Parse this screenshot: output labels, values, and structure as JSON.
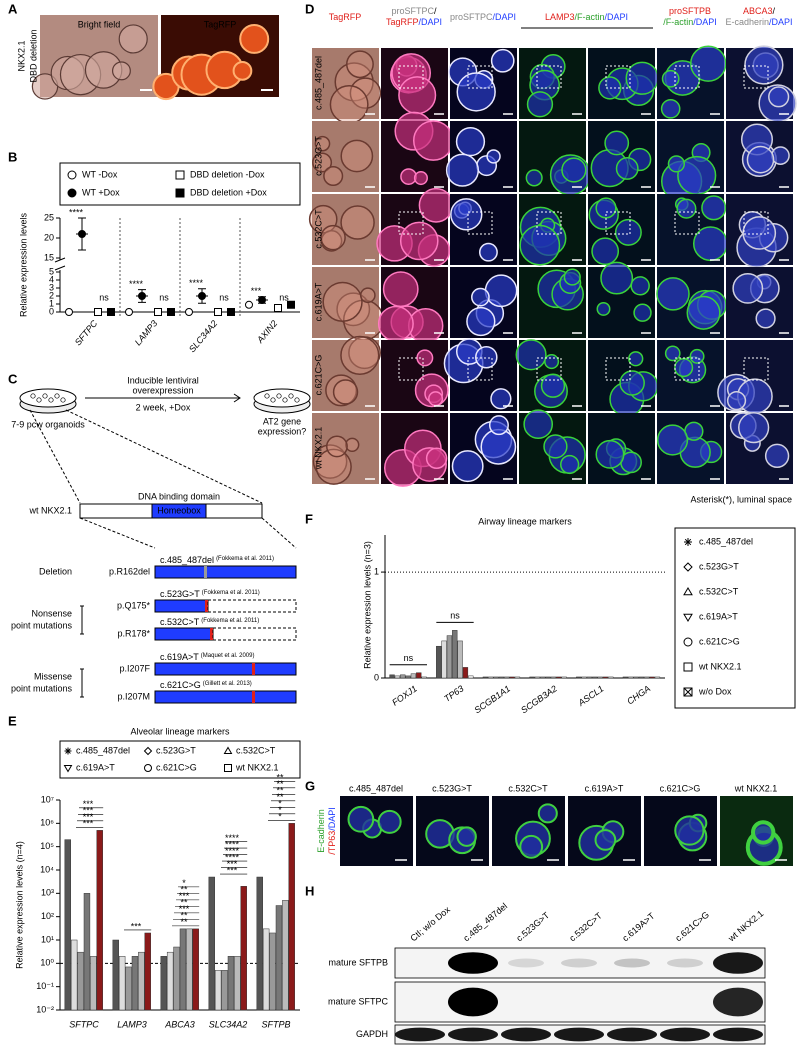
{
  "panel_letters": [
    "A",
    "B",
    "C",
    "D",
    "E",
    "F",
    "G",
    "H"
  ],
  "panel_a": {
    "row_label": [
      "NKX2.1",
      "DBD deletion"
    ],
    "image_labels": [
      "Bright field",
      "TagRFP"
    ]
  },
  "panel_c": {
    "workflow": {
      "steps": [
        "Inducible lentiviral",
        "overexpression"
      ],
      "condition": "2 week, +Dox",
      "source": "7-9 pcw organoids",
      "readout": [
        "AT2 gene",
        "expression?"
      ]
    },
    "construct": {
      "name": "wt NKX2.1",
      "domain": "DNA binding domain",
      "box": "Homeobox"
    },
    "groups": [
      {
        "label": [
          "Deletion"
        ],
        "mutations": [
          {
            "protein": "p.R162del",
            "cdna": "c.485_487del",
            "ref": "(Fokkema et al. 2011)"
          }
        ]
      },
      {
        "label": [
          "Nonsense",
          "point mutations"
        ],
        "mutations": [
          {
            "protein": "p.Q175*",
            "cdna": "c.523G>T",
            "ref": "(Fokkema et al. 2011)"
          },
          {
            "protein": "p.R178*",
            "cdna": "c.532C>T",
            "ref": "(Fokkema et al. 2011)"
          }
        ]
      },
      {
        "label": [
          "Missense",
          "point mutations"
        ],
        "mutations": [
          {
            "protein": "p.I207F",
            "cdna": "c.619A>T",
            "ref": "(Maquet et al. 2009)"
          },
          {
            "protein": "p.I207M",
            "cdna": "c.621C>G",
            "ref": "(Gillett et al. 2013)"
          }
        ]
      }
    ]
  },
  "panel_d": {
    "headers": [
      [
        [
          {
            "text": "TagRFP",
            "color": "#e0201b"
          }
        ]
      ],
      [
        [
          {
            "text": "proSFTPC",
            "color": "#888888"
          },
          {
            "text": "/",
            "color": "#000000"
          }
        ],
        [
          {
            "text": "TagRFP",
            "color": "#e0201b"
          },
          {
            "text": "/DAPI",
            "color": "#1f3cff"
          }
        ]
      ],
      [
        [
          {
            "text": "proSFTPC",
            "color": "#888888"
          },
          {
            "text": "/DAPI",
            "color": "#1f3cff"
          }
        ]
      ],
      [
        [
          {
            "text": "LAMP3",
            "color": "#e0201b"
          },
          {
            "text": "/F-actin",
            "color": "#2ca02c"
          },
          {
            "text": "/DAPI",
            "color": "#1f3cff"
          }
        ]
      ],
      [
        [
          {
            "text": "proSFTPB",
            "color": "#e0201b"
          }
        ],
        [
          {
            "text": "/F-actin",
            "color": "#2ca02c"
          },
          {
            "text": "/DAPI",
            "color": "#1f3cff"
          }
        ]
      ],
      [
        [
          {
            "text": "ABCA3",
            "color": "#e0201b"
          },
          {
            "text": "/",
            "color": "#000000"
          }
        ],
        [
          {
            "text": "E-cadherin",
            "color": "#888888"
          },
          {
            "text": "/DAPI",
            "color": "#1f3cff"
          }
        ]
      ]
    ],
    "row_labels": [
      "c.485_487del",
      "c.523G>T",
      "c.532C>T",
      "c.619A>T",
      "c.621C>G",
      "wt NKX2.1"
    ],
    "footnote": "Asterisk(*), luminal space"
  },
  "panel_g": {
    "side_label": [
      [
        {
          "text": "E-cadherin",
          "color": "#2ca02c"
        }
      ],
      [
        {
          "text": "/TP63",
          "color": "#e0201b"
        },
        {
          "text": "/DAPI",
          "color": "#1f3cff"
        }
      ]
    ],
    "image_labels": [
      "c.485_487del",
      "c.523G>T",
      "c.532C>T",
      "c.619A>T",
      "c.621C>G",
      "wt NKX2.1"
    ]
  },
  "panel_h": {
    "lanes": [
      "Ctl; w/o Dox",
      "c.485_487del",
      "c.523G>T",
      "c.532C>T",
      "c.619A>T",
      "c.621C>G",
      "wt NKX2.1"
    ],
    "rows": [
      "mature SFTPB",
      "mature SFTPC",
      "GAPDH"
    ]
  },
  "chart_data": [
    {
      "type": "dot",
      "y_label": "Relative expression levels",
      "categories": [
        "SFTPC",
        "LAMP3",
        "SLC34A2",
        "AXIN2"
      ],
      "series": [
        {
          "name": "WT -Dox",
          "marker": "circle-open",
          "color": "#000000",
          "values": [
            0,
            0,
            0,
            0.9
          ]
        },
        {
          "name": "WT +Dox",
          "marker": "circle",
          "color": "#000000",
          "values": [
            21,
            2,
            2,
            1.5
          ],
          "errors": [
            4,
            0.8,
            0.9,
            0.4
          ]
        },
        {
          "name": "DBD deletion -Dox",
          "marker": "square-open",
          "color": "#000000",
          "values": [
            0,
            0,
            0,
            0.5
          ]
        },
        {
          "name": "DBD deletion +Dox",
          "marker": "square",
          "color": "#000000",
          "values": [
            0,
            0,
            0,
            0.9
          ]
        }
      ],
      "significance": [
        [
          "****",
          "ns"
        ],
        [
          "****",
          "ns"
        ],
        [
          "****",
          "ns"
        ],
        [
          "***",
          "ns"
        ]
      ],
      "ylim": [
        0,
        25
      ],
      "axis_break": [
        5,
        15
      ],
      "yticks": [
        0,
        1,
        2,
        3,
        4,
        5,
        15,
        20,
        25
      ]
    },
    {
      "type": "bar",
      "title": "Alveolar lineage markers",
      "y_label": "Relative expression levels (n=4)",
      "log_scale": true,
      "categories": [
        "SFTPC",
        "LAMP3",
        "ABCA3",
        "SLC34A2",
        "SFTPB"
      ],
      "series": [
        {
          "name": "c.485_487del",
          "marker": "asterisk",
          "color": "#555555",
          "values": [
            200000,
            10,
            2,
            5000,
            5000
          ]
        },
        {
          "name": "c.523G>T",
          "marker": "diamond",
          "color": "#dddddd",
          "values": [
            10,
            2,
            3,
            0.5,
            30
          ]
        },
        {
          "name": "c.532C>T",
          "marker": "triangle-up",
          "color": "#999999",
          "values": [
            3,
            0.7,
            5,
            0.5,
            20
          ]
        },
        {
          "name": "c.619A>T",
          "marker": "triangle-down",
          "color": "#777777",
          "values": [
            1000,
            2,
            30,
            2,
            300
          ]
        },
        {
          "name": "c.621C>G",
          "marker": "circle-open",
          "color": "#bbbbbb",
          "values": [
            2,
            3,
            30,
            2,
            500
          ]
        },
        {
          "name": "wt NKX2.1",
          "marker": "square-open",
          "color": "#8b1a1a",
          "values": [
            500000,
            20,
            30,
            2000,
            1000000
          ]
        }
      ],
      "significance": [
        [
          "***",
          "***",
          "***",
          "***"
        ],
        [
          "***"
        ],
        [
          "**",
          "**",
          "***",
          "**",
          "***",
          "**",
          "*"
        ],
        [
          "***",
          "***",
          "****",
          "****",
          "****",
          "****"
        ],
        [
          "*",
          "*",
          "*",
          "**",
          "**",
          "**",
          "**"
        ]
      ],
      "reference_line": 1,
      "ylim": [
        0.01,
        10000000
      ],
      "yticks": [
        {
          "value": 0.01,
          "label": "10⁻²"
        },
        {
          "value": 0.1,
          "label": "10⁻¹"
        },
        {
          "value": 1,
          "label": "10⁰"
        },
        {
          "value": 10,
          "label": "10¹"
        },
        {
          "value": 100,
          "label": "10²"
        },
        {
          "value": 1000,
          "label": "10³"
        },
        {
          "value": 10000,
          "label": "10⁴"
        },
        {
          "value": 100000,
          "label": "10⁵"
        },
        {
          "value": 1000000,
          "label": "10⁶"
        },
        {
          "value": 10000000,
          "label": "10⁷"
        }
      ]
    },
    {
      "type": "bar",
      "title": "Airway lineage markers",
      "y_label": "Relative expression levels (n=3)",
      "categories": [
        "FOXJ1",
        "TP63",
        "SCGB1A1",
        "SCGB3A2",
        "ASCL1",
        "CHGA"
      ],
      "series": [
        {
          "name": "c.485_487del",
          "marker": "asterisk",
          "color": "#555555",
          "values": [
            0.03,
            0.3,
            0.01,
            0.01,
            0.01,
            0.01
          ]
        },
        {
          "name": "c.523G>T",
          "marker": "diamond",
          "color": "#dddddd",
          "values": [
            0.02,
            0.35,
            0.01,
            0.01,
            0.01,
            0.01
          ]
        },
        {
          "name": "c.532C>T",
          "marker": "triangle-up",
          "color": "#999999",
          "values": [
            0.03,
            0.4,
            0.01,
            0.01,
            0.01,
            0.01
          ]
        },
        {
          "name": "c.619A>T",
          "marker": "triangle-down",
          "color": "#777777",
          "values": [
            0.02,
            0.45,
            0.01,
            0.01,
            0.01,
            0.01
          ]
        },
        {
          "name": "c.621C>G",
          "marker": "circle-open",
          "color": "#bbbbbb",
          "values": [
            0.04,
            0.35,
            0.01,
            0.01,
            0.01,
            0.01
          ]
        },
        {
          "name": "wt NKX2.1",
          "marker": "square-open",
          "color": "#8b1a1a",
          "values": [
            0.05,
            0.1,
            0.01,
            0.01,
            0.01,
            0.01
          ]
        },
        {
          "name": "w/o Dox",
          "marker": "square-x",
          "color": "#ffffff",
          "values": [
            0.01,
            0.02,
            0.01,
            0.01,
            0.01,
            0.01
          ]
        }
      ],
      "significance": [
        "ns",
        "ns",
        null,
        null,
        null,
        null
      ],
      "reference_line": 1,
      "ylim": [
        0,
        1.35
      ],
      "yticks": [
        0,
        1
      ]
    }
  ]
}
